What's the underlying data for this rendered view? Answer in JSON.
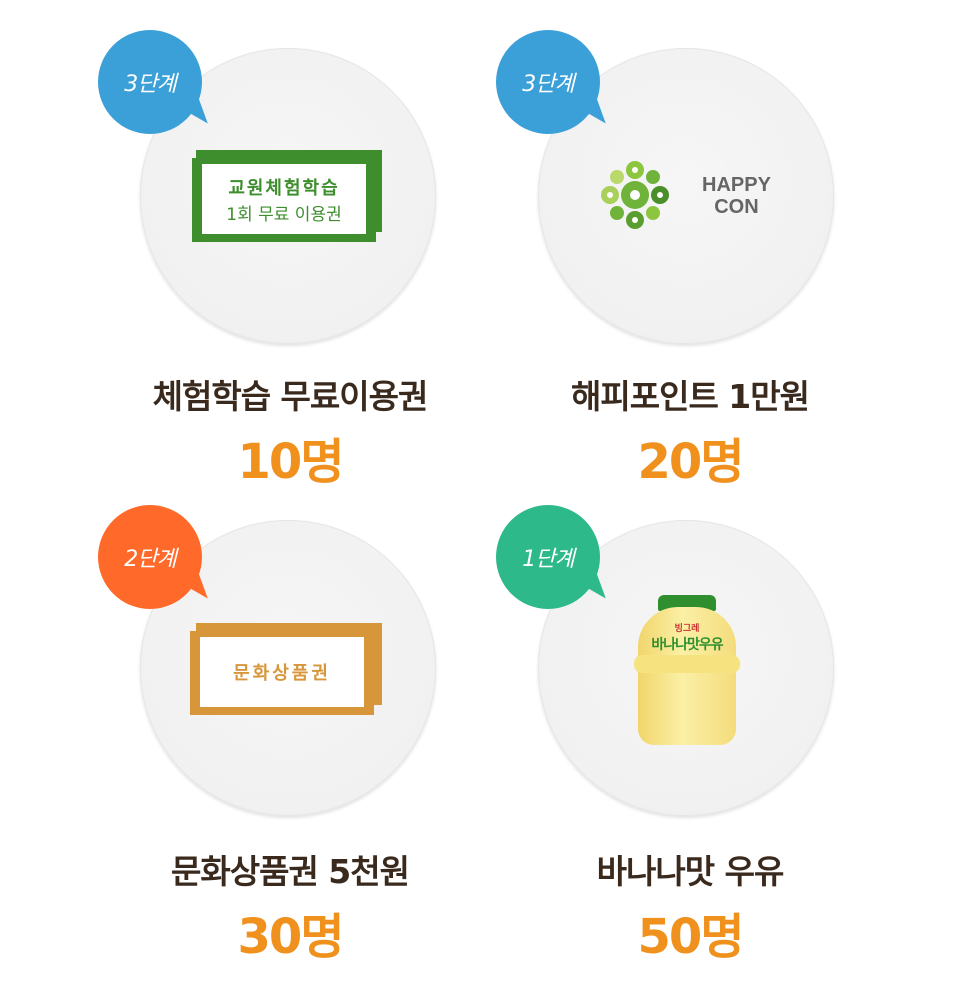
{
  "prizes": [
    {
      "level": "3단계",
      "ticket_line1": "교원체험학습",
      "ticket_line2": "1회 무료 이용권",
      "name": "체험학습 무료이용권",
      "count": "10명"
    },
    {
      "level": "3단계",
      "logo_text_1": "HAPPY",
      "logo_text_2": "CON",
      "name": "해피포인트 1만원",
      "count": "20명"
    },
    {
      "level": "2단계",
      "ticket_line1": "문화상품권",
      "name": "문화상품권 5천원",
      "count": "30명"
    },
    {
      "level": "1단계",
      "name": "바나나맛 우유",
      "count": "50명",
      "bottle_label": "바나나맛우유",
      "bottle_brand": "빙그레"
    }
  ],
  "colors": {
    "blue": "#3b9fd8",
    "orange": "#ff6a2a",
    "green": "#2db98a",
    "ticket_green": "#3e8e2e",
    "ticket_brown": "#d8963a",
    "count": "#f0911e"
  }
}
